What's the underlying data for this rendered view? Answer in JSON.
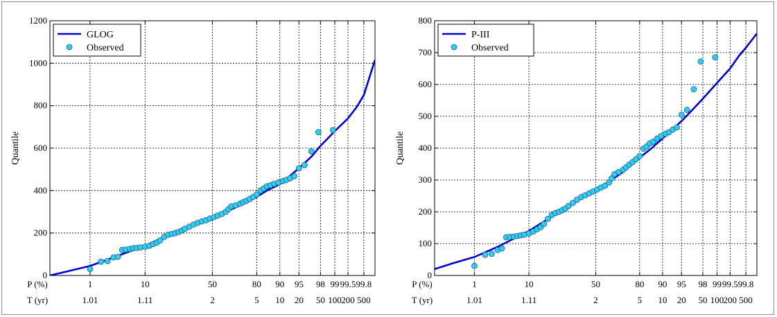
{
  "chart_data": [
    {
      "type": "line",
      "ylabel": "Quantile",
      "ylim": [
        0,
        1200
      ],
      "yticks": [
        0,
        200,
        400,
        600,
        800,
        1000,
        1200
      ],
      "x_scale": "normal-probability",
      "xlim_percent": [
        0.1,
        99.9
      ],
      "p_label": "P (%)",
      "t_label": "T (yr)",
      "p_ticks": [
        1,
        10,
        50,
        80,
        90,
        95,
        98,
        99,
        99.5,
        99.8
      ],
      "p_tick_labels": [
        "1",
        "10",
        "50",
        "80",
        "90",
        "95",
        "98",
        "99",
        "99.5",
        "99.8"
      ],
      "t_ticks": [
        1.01,
        1.11,
        2,
        5,
        10,
        20,
        50,
        100,
        200,
        500
      ],
      "t_tick_labels": [
        "1.01",
        "1.11",
        "2",
        "5",
        "10",
        "20",
        "50",
        "100",
        "200",
        "500"
      ],
      "grid": true,
      "legend_position": "top-left",
      "series": [
        {
          "name": "GLOG",
          "kind": "line",
          "color": "#0000cc",
          "points": [
            [
              0.1,
              0
            ],
            [
              0.3,
              20
            ],
            [
              1,
              45
            ],
            [
              3,
              85
            ],
            [
              10,
              140
            ],
            [
              20,
              190
            ],
            [
              30,
              225
            ],
            [
              40,
              250
            ],
            [
              50,
              275
            ],
            [
              60,
              300
            ],
            [
              70,
              330
            ],
            [
              80,
              370
            ],
            [
              85,
              400
            ],
            [
              90,
              430
            ],
            [
              93,
              470
            ],
            [
              95,
              505
            ],
            [
              97,
              560
            ],
            [
              98,
              610
            ],
            [
              99,
              680
            ],
            [
              99.5,
              740
            ],
            [
              99.7,
              795
            ],
            [
              99.8,
              850
            ],
            [
              99.9,
              1015
            ]
          ]
        },
        {
          "name": "Observed",
          "kind": "scatter",
          "color": "#33ccee",
          "points": [
            [
              1,
              30
            ],
            [
              1.7,
              65
            ],
            [
              2.3,
              68
            ],
            [
              3,
              85
            ],
            [
              3.6,
              88
            ],
            [
              4.3,
              120
            ],
            [
              5,
              122
            ],
            [
              5.8,
              125
            ],
            [
              6.6,
              128
            ],
            [
              7.5,
              130
            ],
            [
              8.5,
              132
            ],
            [
              10,
              135
            ],
            [
              11.5,
              140
            ],
            [
              13,
              148
            ],
            [
              14.5,
              155
            ],
            [
              16,
              165
            ],
            [
              18,
              182
            ],
            [
              20,
              192
            ],
            [
              22,
              196
            ],
            [
              24,
              200
            ],
            [
              26,
              205
            ],
            [
              28,
              212
            ],
            [
              30,
              220
            ],
            [
              33,
              230
            ],
            [
              36,
              240
            ],
            [
              39,
              248
            ],
            [
              42,
              255
            ],
            [
              45,
              260
            ],
            [
              48,
              268
            ],
            [
              51,
              275
            ],
            [
              54,
              282
            ],
            [
              57,
              290
            ],
            [
              60,
              300
            ],
            [
              62,
              312
            ],
            [
              64,
              325
            ],
            [
              67,
              330
            ],
            [
              70,
              338
            ],
            [
              72,
              345
            ],
            [
              74,
              352
            ],
            [
              76,
              360
            ],
            [
              78,
              370
            ],
            [
              80,
              382
            ],
            [
              82,
              400
            ],
            [
              83.5,
              410
            ],
            [
              85,
              420
            ],
            [
              86.5,
              425
            ],
            [
              88,
              432
            ],
            [
              89.5,
              438
            ],
            [
              91,
              445
            ],
            [
              92,
              450
            ],
            [
              93,
              458
            ],
            [
              94,
              468
            ],
            [
              95,
              505
            ],
            [
              96,
              520
            ],
            [
              97,
              585
            ],
            [
              97.8,
              675
            ],
            [
              98.9,
              685
            ]
          ]
        }
      ]
    },
    {
      "type": "line",
      "ylabel": "Quantile",
      "ylim": [
        0,
        800
      ],
      "yticks": [
        0,
        100,
        200,
        300,
        400,
        500,
        600,
        700,
        800
      ],
      "x_scale": "normal-probability",
      "xlim_percent": [
        0.1,
        99.9
      ],
      "p_label": "P (%)",
      "t_label": "T (yr)",
      "p_ticks": [
        1,
        10,
        50,
        80,
        90,
        95,
        98,
        99,
        99.5,
        99.8
      ],
      "p_tick_labels": [
        "1",
        "10",
        "50",
        "80",
        "90",
        "95",
        "98",
        "99",
        "99.5",
        "99.8"
      ],
      "t_ticks": [
        1.01,
        1.11,
        2,
        5,
        10,
        20,
        50,
        100,
        200,
        500
      ],
      "t_tick_labels": [
        "1.01",
        "1.11",
        "2",
        "5",
        "10",
        "20",
        "50",
        "100",
        "200",
        "500"
      ],
      "grid": true,
      "legend_position": "top-left",
      "series": [
        {
          "name": "P-III",
          "kind": "line",
          "color": "#0000cc",
          "points": [
            [
              0.1,
              20
            ],
            [
              0.3,
              38
            ],
            [
              1,
              58
            ],
            [
              3,
              90
            ],
            [
              10,
              140
            ],
            [
              20,
              185
            ],
            [
              30,
              215
            ],
            [
              40,
              245
            ],
            [
              50,
              270
            ],
            [
              60,
              295
            ],
            [
              70,
              325
            ],
            [
              80,
              370
            ],
            [
              85,
              395
            ],
            [
              90,
              430
            ],
            [
              93,
              460
            ],
            [
              95,
              485
            ],
            [
              97,
              525
            ],
            [
              98,
              555
            ],
            [
              99,
              605
            ],
            [
              99.5,
              650
            ],
            [
              99.7,
              690
            ],
            [
              99.8,
              715
            ],
            [
              99.9,
              760
            ]
          ]
        },
        {
          "name": "Observed",
          "kind": "scatter",
          "color": "#33ccee",
          "points": [
            [
              1,
              30
            ],
            [
              1.7,
              65
            ],
            [
              2.3,
              68
            ],
            [
              3,
              80
            ],
            [
              3.6,
              85
            ],
            [
              4.3,
              120
            ],
            [
              5,
              121
            ],
            [
              5.8,
              122
            ],
            [
              6.6,
              124
            ],
            [
              7.5,
              126
            ],
            [
              8.5,
              128
            ],
            [
              10,
              132
            ],
            [
              11.5,
              138
            ],
            [
              13,
              145
            ],
            [
              14.5,
              152
            ],
            [
              16,
              162
            ],
            [
              18,
              178
            ],
            [
              20,
              190
            ],
            [
              22,
              196
            ],
            [
              24,
              200
            ],
            [
              26,
              205
            ],
            [
              28,
              210
            ],
            [
              30,
              218
            ],
            [
              33,
              228
            ],
            [
              36,
              238
            ],
            [
              39,
              246
            ],
            [
              42,
              252
            ],
            [
              45,
              258
            ],
            [
              48,
              264
            ],
            [
              51,
              270
            ],
            [
              54,
              276
            ],
            [
              57,
              282
            ],
            [
              60,
              292
            ],
            [
              62,
              305
            ],
            [
              64,
              318
            ],
            [
              67,
              325
            ],
            [
              70,
              332
            ],
            [
              72,
              340
            ],
            [
              74,
              348
            ],
            [
              76,
              356
            ],
            [
              78,
              365
            ],
            [
              80,
              375
            ],
            [
              82,
              398
            ],
            [
              83.5,
              405
            ],
            [
              85,
              415
            ],
            [
              86.5,
              420
            ],
            [
              88,
              430
            ],
            [
              89.5,
              438
            ],
            [
              91,
              445
            ],
            [
              92,
              450
            ],
            [
              93,
              458
            ],
            [
              94,
              465
            ],
            [
              95,
              505
            ],
            [
              96,
              520
            ],
            [
              97,
              585
            ],
            [
              97.8,
              672
            ],
            [
              98.9,
              685
            ]
          ]
        }
      ]
    }
  ]
}
